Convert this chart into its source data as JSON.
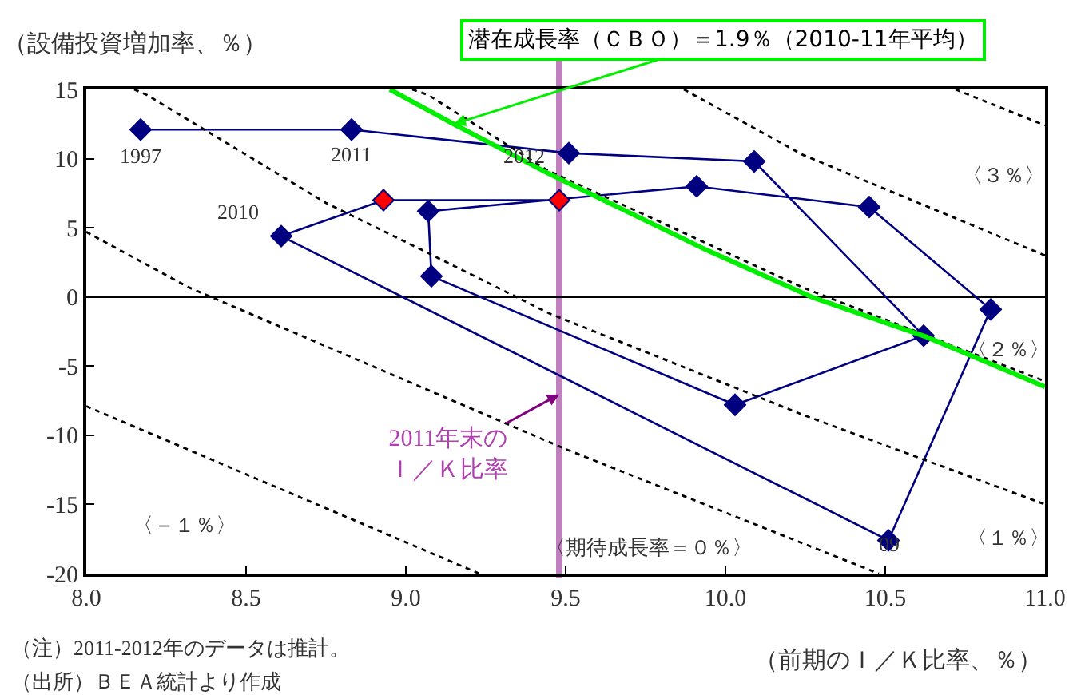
{
  "chart_data": {
    "type": "line",
    "ylabel": "（設備投資増加率、％）",
    "xlabel": "（前期のＩ／Ｋ比率、％）",
    "xlim": [
      8,
      11
    ],
    "ylim": [
      -20,
      15
    ],
    "xticks": [
      {
        "value": 8,
        "label": "8.0"
      },
      {
        "value": 8.5,
        "label": "8.5"
      },
      {
        "value": 9,
        "label": "9.0"
      },
      {
        "value": 9.5,
        "label": "9.5"
      },
      {
        "value": 10,
        "label": "10.0"
      },
      {
        "value": 10.5,
        "label": "10.5"
      },
      {
        "value": 11,
        "label": "11.0"
      }
    ],
    "yticks": [
      -20,
      -15,
      -10,
      -5,
      0,
      5,
      10,
      15
    ],
    "grid": false,
    "legend": false,
    "marker": "diamond",
    "series": [
      {
        "color": "#000080",
        "colors": [
          "#000080",
          "#000080",
          "#000080",
          "#000080",
          "#000080",
          "#000080",
          "#000080",
          "#000080",
          "#000080",
          "#000080",
          "#000080",
          "#000080",
          "#000080",
          "#ff0000",
          "#ff0000"
        ],
        "x": [
          8.17,
          8.83,
          9.51,
          10.09,
          10.62,
          10.03,
          9.08,
          9.07,
          9.91,
          10.45,
          10.83,
          10.51,
          8.61,
          8.93,
          9.48
        ],
        "values": [
          12.1,
          12.1,
          10.4,
          9.8,
          -2.8,
          -7.8,
          1.5,
          6.2,
          8.0,
          6.5,
          -0.9,
          -17.6,
          4.4,
          7.0,
          7.0
        ]
      },
      {
        "color": "#000000",
        "line_style": "dotted",
        "marker": "none",
        "x": [
          8.0,
          8.32,
          9.5,
          10.48
        ],
        "values": [
          4.7,
          0.7,
          -11.0,
          -20.0
        ]
      },
      {
        "color": "#000000",
        "line_style": "dotted",
        "marker": "none",
        "x": [
          8.0,
          9.23
        ],
        "values": [
          -7.9,
          -20.0
        ]
      },
      {
        "color": "#000000",
        "line_style": "dotted",
        "marker": "none",
        "x": [
          8.15,
          8.19,
          8.75,
          9.05,
          9.45,
          10.24,
          11.0
        ],
        "values": [
          15.0,
          14.6,
          6.8,
          3.4,
          -1.2,
          -8.5,
          -15.0
        ]
      },
      {
        "color": "#000000",
        "line_style": "dotted",
        "marker": "none",
        "x": [
          9.02,
          9.07,
          9.44,
          10.24,
          11.0
        ],
        "values": [
          15.0,
          14.6,
          9.2,
          0.7,
          -6.1
        ]
      },
      {
        "color": "#000000",
        "line_style": "dotted",
        "marker": "none",
        "x": [
          9.87,
          10.24,
          11.0
        ],
        "values": [
          15.0,
          10.3,
          3.0
        ]
      },
      {
        "color": "#000000",
        "line_style": "dotted",
        "marker": "none",
        "x": [
          10.72,
          11.0
        ],
        "values": [
          15.0,
          12.4
        ]
      },
      {
        "name": "潜在成長率（ＣＢＯ）＝1.9％（2010-11年平均）",
        "color": "#00ee00",
        "marker": "none",
        "x": [
          8.95,
          9.15,
          9.44,
          9.94,
          10.27,
          10.63,
          11.0
        ],
        "values": [
          15.0,
          12.5,
          9.0,
          3.4,
          0.0,
          -2.9,
          -6.5
        ]
      }
    ],
    "ref_lines": [
      {
        "axis": "x",
        "value": 9.48,
        "label": "2011年末のＩ／Ｋ比率",
        "color": "#c080c0"
      },
      {
        "axis": "y",
        "value": 0,
        "color": "#000000"
      }
    ],
    "annotations": [
      {
        "text": "1997",
        "x": 8.17,
        "y": 12.1
      },
      {
        "text": "2011",
        "x": 8.93,
        "y": 7.0
      },
      {
        "text": "2012",
        "x": 9.48,
        "y": 7.0
      },
      {
        "text": "2010",
        "x": 8.61,
        "y": 4.4
      },
      {
        "text": "09",
        "x": 10.51,
        "y": -17.6
      },
      "〈３％〉",
      "〈２％〉",
      "〈１％〉",
      "〈－１％〉",
      "〈期待成長率＝０％〉",
      "（注）2011-2012年のデータは推計。",
      "（出所）ＢＥＡ統計より作成"
    ]
  }
}
